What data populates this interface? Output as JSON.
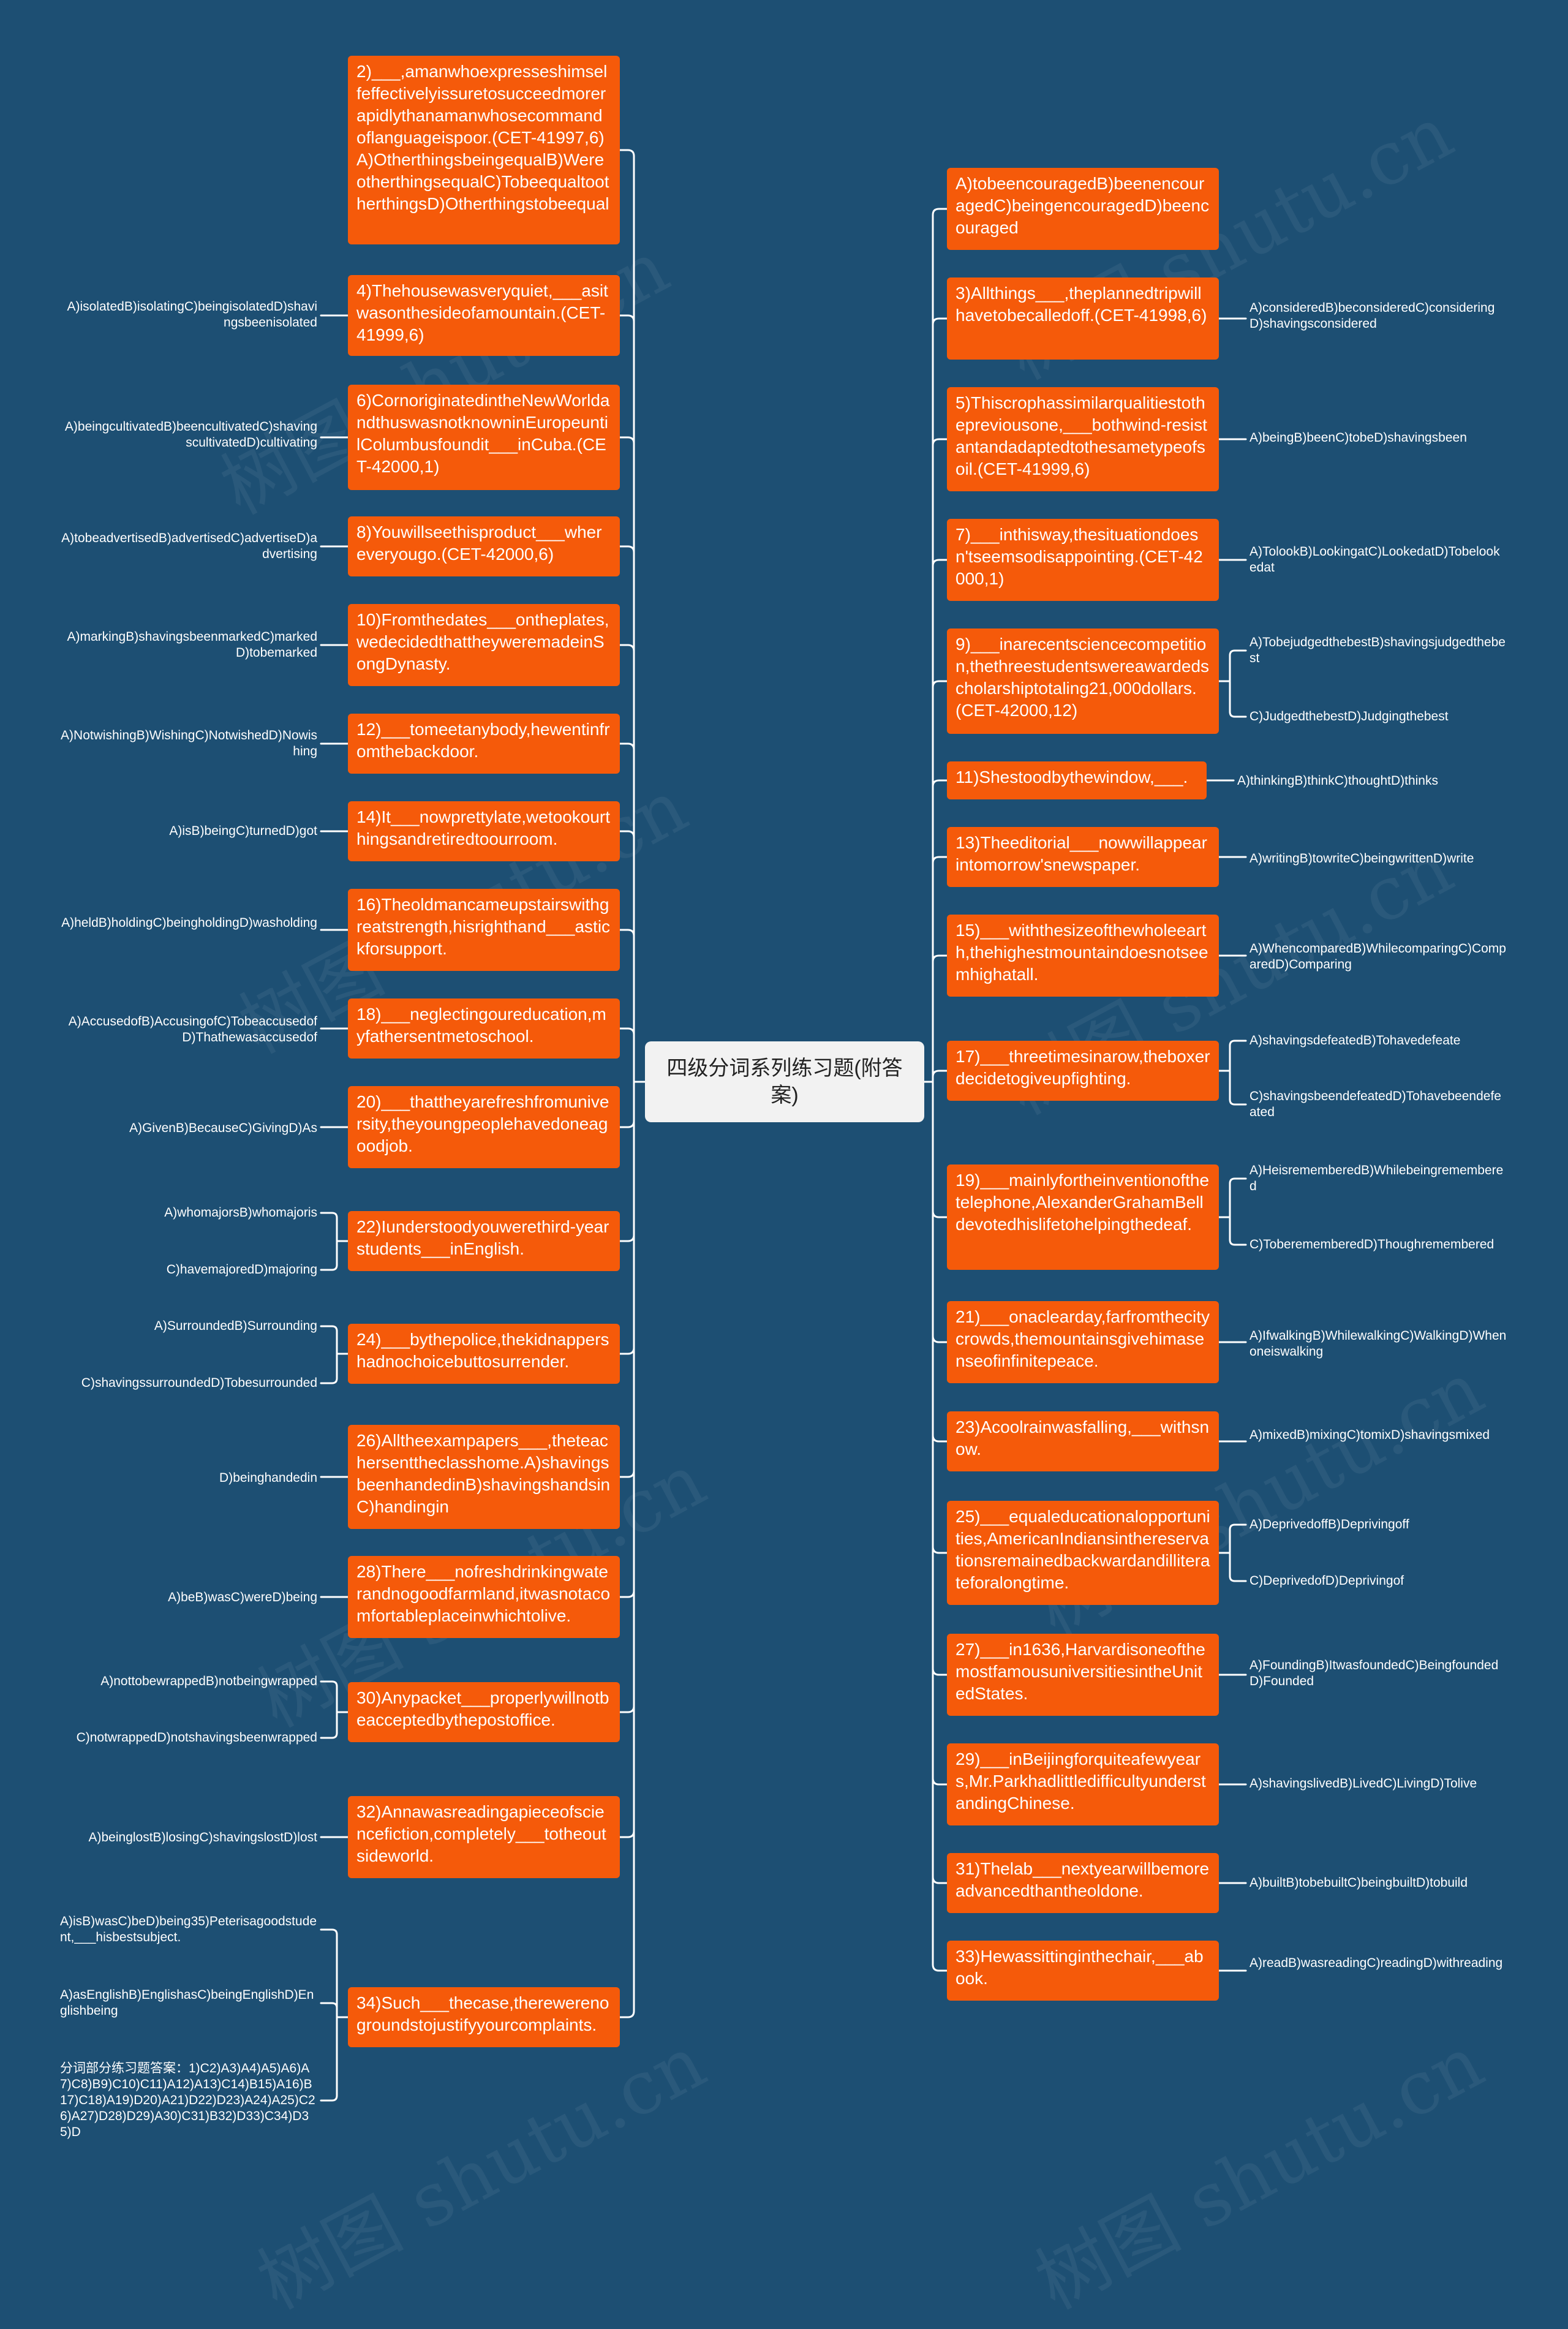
{
  "center_title": "四级分词系列练习题(附答案)",
  "colors": {
    "background": "#1d4f73",
    "topic": "#f55a0a",
    "center": "#f2f2f2",
    "line": "#ffffff"
  },
  "watermark": "树图 shutu.cn",
  "left": [
    {
      "text": "2)___,amanwhoexpresseshimselfeffectivelyissuretosucceedmorerapidlythanamanwhosecommandoflanguageispoor.(CET-41997,6)A)OtherthingsbeingequalB)WereotherthingsequalC)TobeequaltootherthingsD)Otherthingstobeequal",
      "leaves": []
    },
    {
      "text": "4)Thehousewasveryquiet,___asitwasonthesideofamountain.(CET-41999,6)",
      "leaves": [
        "A)isolatedB)isolatingC)beingisolatedD)shavingsbeenisolated"
      ]
    },
    {
      "text": "6)CornoriginatedintheNewWorldandthuswasnotknowninEuropeuntilColumbusfoundit___inCuba.(CET-42000,1)",
      "leaves": [
        "A)beingcultivatedB)beencultivatedC)shavingscultivatedD)cultivating"
      ]
    },
    {
      "text": "8)Youwillseethisproduct___whereveryougo.(CET-42000,6)",
      "leaves": [
        "A)tobeadvertisedB)advertisedC)advertiseD)advertising"
      ]
    },
    {
      "text": "10)Fromthedates___ontheplates,wedecidedthattheyweremadeinSongDynasty.",
      "leaves": [
        "A)markingB)shavingsbeenmarkedC)markedD)tobemarked"
      ]
    },
    {
      "text": "12)___tomeetanybody,hewentinfromthebackdoor.",
      "leaves": [
        "A)NotwishingB)WishingC)NotwishedD)Nowishing"
      ]
    },
    {
      "text": "14)It___nowprettylate,wetookourthingsandretiredtoourroom.",
      "leaves": [
        "A)isB)beingC)turnedD)got"
      ]
    },
    {
      "text": "16)Theoldmancameupstairswithgreatstrength,hisrighthand___astickforsupport.",
      "leaves": [
        "A)heldB)holdingC)beingholdingD)washolding"
      ]
    },
    {
      "text": "18)___neglectingoureducation,myfathersentmetoschool.",
      "leaves": [
        "A)AccusedofB)AccusingofC)TobeaccusedofD)Thathewasaccusedof"
      ]
    },
    {
      "text": "20)___thattheyarefreshfromuniversity,theyoungpeoplehavedoneagoodjob.",
      "leaves": [
        "A)GivenB)BecauseC)GivingD)As"
      ]
    },
    {
      "text": "22)Iunderstoodyouwerethird-yearstudents___inEnglish.",
      "leaves": [
        "A)whomajorsB)whomajoris",
        "C)havemajoredD)majoring"
      ]
    },
    {
      "text": "24)___bythepolice,thekidnappershadnochoicebuttosurrender.",
      "leaves": [
        "A)SurroundedB)Surrounding",
        "C)shavingssurroundedD)Tobesurrounded"
      ]
    },
    {
      "text": "26)Alltheexampapers___,theteachersenttheclasshome.A)shavingsbeenhandedinB)shavingshandsinC)handingin",
      "leaves": [
        "D)beinghandedin"
      ]
    },
    {
      "text": "28)There___nofreshdrinkingwaterandnogoodfarmland,itwasnotacomfortableplaceinwhichtolive.",
      "leaves": [
        "A)beB)wasC)wereD)being"
      ]
    },
    {
      "text": "30)Anypacket___properlywillnotbeacceptedbythepostoffice.",
      "leaves": [
        "A)nottobewrappedB)notbeingwrapped",
        "C)notwrappedD)notshavingsbeenwrapped"
      ]
    },
    {
      "text": "32)Annawasreadingapieceofsciencefiction,completely___totheoutsideworld.",
      "leaves": [
        "A)beinglostB)losingC)shavingslostD)lost"
      ]
    },
    {
      "text": "34)Such___thecase,therewerenogroundstojustifyyourcomplaints.",
      "leaves": [
        "A)isB)wasC)beD)being35)Peterisagoodstudent,___hisbestsubject.",
        "A)asEnglishB)EnglishasC)beingEnglishD)Englishbeing",
        "分词部分练习题答案：1)C2)A3)A4)A5)A6)A7)C8)B9)C10)C11)A12)A13)C14)B15)A16)B17)C18)A19)D20)A21)D22)D23)A24)A25)C26)A27)D28)D29)A30)C31)B32)D33)C34)D35)D"
      ]
    }
  ],
  "right": [
    {
      "text": "A)tobeencouragedB)beenencouragedC)beingencouragedD)beencouraged",
      "leaves": []
    },
    {
      "text": "3)Allthings___,theplannedtripwillhavetobecalledoff.(CET-41998,6)",
      "leaves": [
        "A)consideredB)beconsideredC)consideringD)shavingsconsidered"
      ]
    },
    {
      "text": "5)Thiscrophassimilarqualitiestothepreviousone,___bothwind-resistantandadaptedtothesametypeofsoil.(CET-41999,6)",
      "leaves": [
        "A)beingB)beenC)tobeD)shavingsbeen"
      ]
    },
    {
      "text": "7)___inthisway,thesituationdoesn'tseemsodisappointing.(CET-42000,1)",
      "leaves": [
        "A)TolookB)LookingatC)LookedatD)Tobelookedat"
      ]
    },
    {
      "text": "9)___inarecentsciencecompetition,thethreestudentswereawardedscholarshiptotaling21,000dollars.(CET-42000,12)",
      "leaves": [
        "A)TobejudgedthebestB)shavingsjudgedthebest",
        "C)JudgedthebestD)Judgingthebest"
      ]
    },
    {
      "text": "11)Shestoodbythewindow,___.",
      "leaves": [
        "A)thinkingB)thinkC)thoughtD)thinks"
      ]
    },
    {
      "text": "13)Theeditorial___nowwillappearintomorrow'snewspaper.",
      "leaves": [
        "A)writingB)towriteC)beingwrittenD)write"
      ]
    },
    {
      "text": "15)___withthesizeofthewholeearth,thehighestmountaindoesnotseemhighatall.",
      "leaves": [
        "A)WhencomparedB)WhilecomparingC)ComparedD)Comparing"
      ]
    },
    {
      "text": "17)___threetimesinarow,theboxerdecidetogiveupfighting.",
      "leaves": [
        "A)shavingsdefeatedB)Tohavedefeate",
        "C)shavingsbeendefeatedD)Tohavebeendefeated"
      ]
    },
    {
      "text": "19)___mainlyfortheinventionofthetelephone,AlexanderGrahamBelldevotedhislifetohelpingthedeaf.",
      "leaves": [
        "A)HeisrememberedB)Whilebeingremembered",
        "C)ToberememberedD)Thoughremembered"
      ]
    },
    {
      "text": "21)___onaclearday,farfromthecitycrowds,themountainsgivehimasenseofinfinitepeace.",
      "leaves": [
        "A)IfwalkingB)WhilewalkingC)WalkingD)Whenoneiswalking"
      ]
    },
    {
      "text": "23)Acoolrainwasfalling,___withsnow.",
      "leaves": [
        "A)mixedB)mixingC)tomixD)shavingsmixed"
      ]
    },
    {
      "text": "25)___equaleducationalopportunities,AmericanIndiansinthereservationsremainedbackwardandilliterateforalongtime.",
      "leaves": [
        "A)DeprivedoffB)Deprivingoff",
        "C)DeprivedofD)Deprivingof"
      ]
    },
    {
      "text": "27)___in1636,HarvardisoneofthemostfamousuniversitiesintheUnitedStates.",
      "leaves": [
        "A)FoundingB)ItwasfoundedC)BeingfoundedD)Founded"
      ]
    },
    {
      "text": "29)___inBeijingforquiteafewyears,Mr.ParkhadlittledifficultyunderstandingChinese.",
      "leaves": [
        "A)shavingslivedB)LivedC)LivingD)Tolive"
      ]
    },
    {
      "text": "31)Thelab___nextyearwillbemoreadvancedthantheoldone.",
      "leaves": [
        "A)builtB)tobebuiltC)beingbuiltD)tobuild"
      ]
    },
    {
      "text": "33)Hewassittinginthechair,___abook.",
      "leaves": [
        "A)readB)wasreadingC)readingD)withreading"
      ]
    }
  ]
}
